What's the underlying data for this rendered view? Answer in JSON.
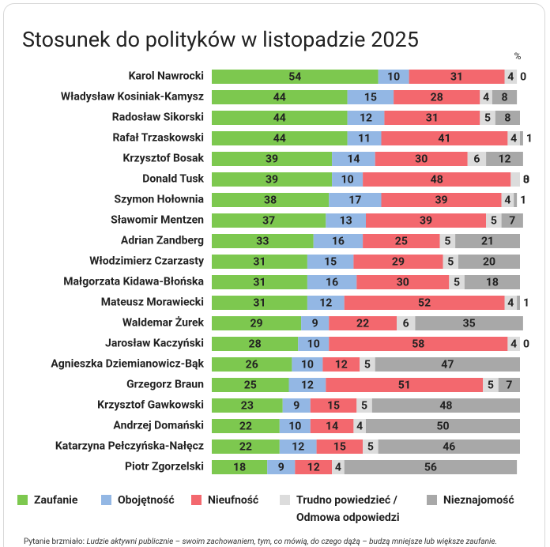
{
  "chart_data": {
    "type": "stacked-barh",
    "title": "Stosunek do polityków w listopadzie 2025",
    "unit": "%",
    "categories": [
      "Karol Nawrocki",
      "Władysław Kosiniak-Kamysz",
      "Radosław Sikorski",
      "Rafał Trzaskowski",
      "Krzysztof Bosak",
      "Donald Tusk",
      "Szymon Hołownia",
      "Sławomir Mentzen",
      "Adrian Zandberg",
      "Włodzimierz Czarzasty",
      "Małgorzata Kidawa-Błońska",
      "Mateusz Morawiecki",
      "Waldemar Żurek",
      "Jarosław Kaczyński",
      "Agnieszka Dziemianowicz-Bąk",
      "Grzegorz Braun",
      "Krzysztof Gawkowski",
      "Andrzej Domański",
      "Katarzyna Pełczyńska-Nałęcz",
      "Piotr Zgorzelski"
    ],
    "series": [
      {
        "name": "Zaufanie",
        "color": "#7dc84f",
        "values": [
          54,
          44,
          44,
          44,
          39,
          39,
          38,
          37,
          33,
          31,
          31,
          31,
          29,
          28,
          26,
          25,
          23,
          22,
          22,
          18
        ]
      },
      {
        "name": "Obojętność",
        "color": "#93b7e4",
        "values": [
          10,
          15,
          12,
          11,
          14,
          10,
          17,
          13,
          16,
          15,
          16,
          12,
          9,
          10,
          10,
          12,
          9,
          10,
          12,
          9
        ]
      },
      {
        "name": "Nieufność",
        "color": "#f3686e",
        "values": [
          31,
          28,
          31,
          41,
          30,
          48,
          39,
          39,
          25,
          29,
          30,
          52,
          22,
          58,
          12,
          51,
          15,
          14,
          15,
          12
        ]
      },
      {
        "name": "Trudno powiedzieć / Odmowa odpowiedzi",
        "color": "#dcdcdc",
        "values": [
          4,
          4,
          5,
          4,
          6,
          3,
          4,
          5,
          5,
          5,
          5,
          4,
          6,
          4,
          5,
          5,
          5,
          4,
          5,
          4
        ]
      },
      {
        "name": "Nieznajomość",
        "color": "#a8a8a8",
        "values": [
          0,
          8,
          8,
          1,
          12,
          0,
          1,
          7,
          21,
          20,
          18,
          1,
          35,
          0,
          47,
          7,
          48,
          50,
          46,
          56
        ]
      }
    ],
    "footnote_lead": "Pytanie brzmiało:",
    "footnote_text": "Ludzie aktywni publicznie – swoim zachowaniem, tym, co mówią, do czego dążą – budzą mniejsze lub większe zaufanie."
  }
}
